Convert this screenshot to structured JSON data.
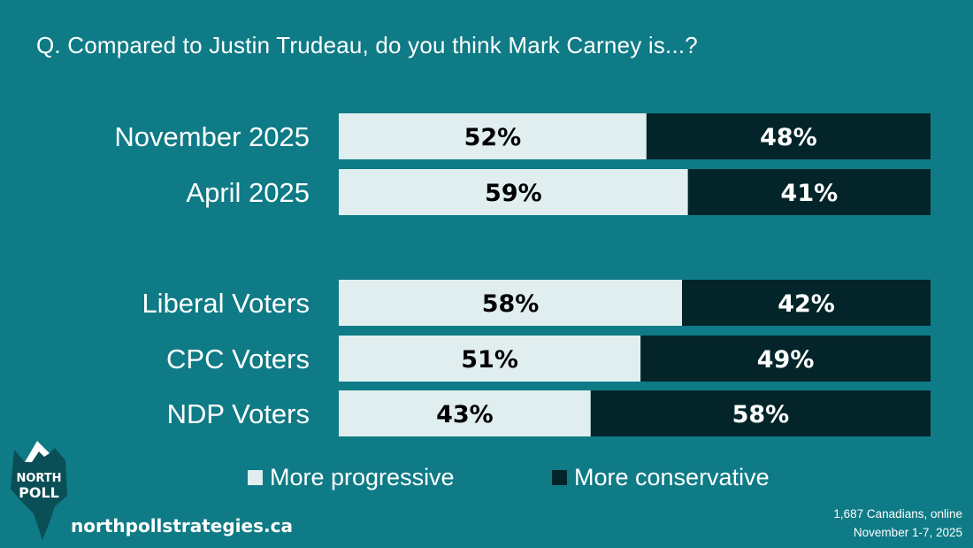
{
  "question": "Q. Compared to Justin Trudeau, do you think Mark Carney is...?",
  "chart_data": {
    "type": "bar",
    "orientation": "horizontal",
    "stacked": true,
    "categories": [
      "November 2025",
      "April 2025",
      "Liberal Voters",
      "CPC Voters",
      "NDP Voters"
    ],
    "series": [
      {
        "name": "More progressive",
        "values": [
          52,
          59,
          58,
          51,
          43
        ],
        "labels": [
          "52%",
          "59%",
          "58%",
          "51%",
          "43%"
        ],
        "color": "#e0eef0"
      },
      {
        "name": "More conservative",
        "values": [
          48,
          41,
          42,
          49,
          58
        ],
        "labels": [
          "48%",
          "41%",
          "42%",
          "49%",
          "58%"
        ],
        "color": "#03252a"
      }
    ],
    "legend_placement": "bottom",
    "grid": false
  },
  "legend": {
    "progressive": "More progressive",
    "conservative": "More conservative"
  },
  "brand": {
    "logo_line1": "NORTH",
    "logo_line2": "POLL",
    "website": "northpollstrategies.ca"
  },
  "footnote": {
    "line1": "1,687 Canadians, online",
    "line2": "November 1-7, 2025"
  },
  "colors": {
    "background": "#0f7b86",
    "progressive": "#e0eef0",
    "conservative": "#03252a",
    "text": "#ffffff"
  }
}
